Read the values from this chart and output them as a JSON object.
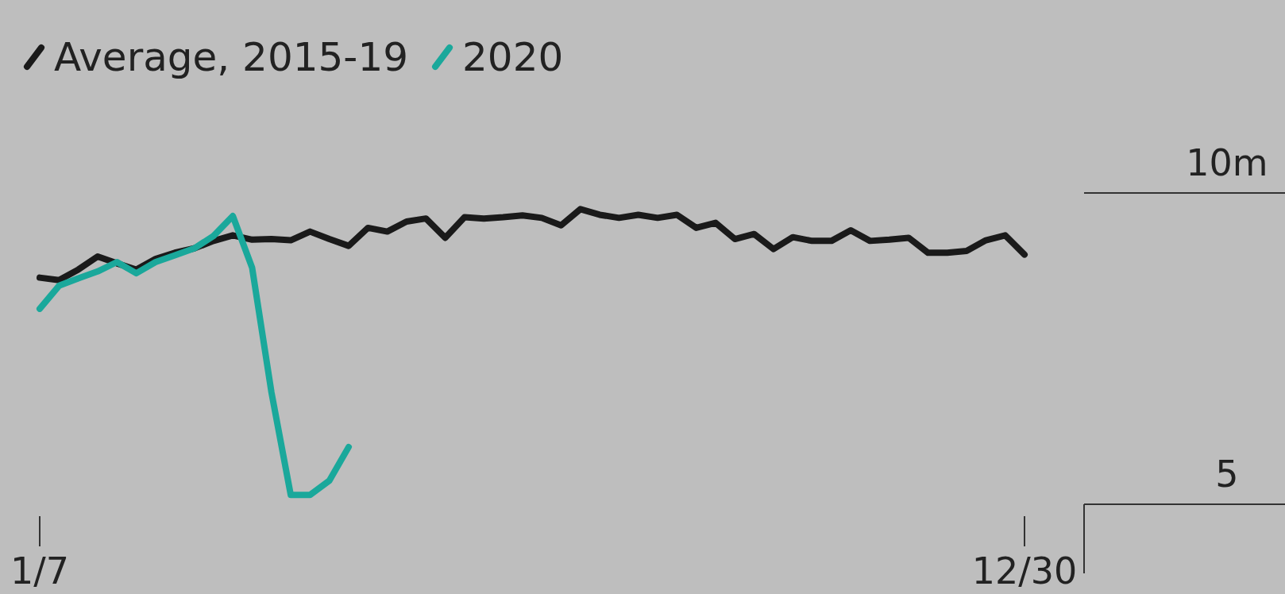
{
  "chart_data": {
    "type": "line",
    "categories": [
      "1/7",
      null,
      null,
      null,
      null,
      null,
      null,
      null,
      null,
      null,
      null,
      null,
      null,
      null,
      null,
      null,
      null,
      null,
      null,
      null,
      null,
      null,
      null,
      null,
      null,
      null,
      null,
      null,
      null,
      null,
      null,
      null,
      null,
      null,
      null,
      null,
      null,
      null,
      null,
      null,
      null,
      null,
      null,
      null,
      null,
      null,
      null,
      null,
      null,
      null,
      null,
      "12/30"
    ],
    "ylim": [
      5,
      10
    ],
    "yticks": [
      {
        "value": 10,
        "label": "10m"
      },
      5
    ],
    "legend": "top left",
    "series": [
      {
        "name": "Average, 2015-19",
        "color": "#1a1a1a",
        "values": [
          8.64,
          8.6,
          8.77,
          8.98,
          8.87,
          8.77,
          8.94,
          9.04,
          9.11,
          9.23,
          9.32,
          9.25,
          9.26,
          9.24,
          9.38,
          9.26,
          9.15,
          9.44,
          9.38,
          9.54,
          9.59,
          9.28,
          9.61,
          9.59,
          9.61,
          9.64,
          9.6,
          9.48,
          9.74,
          9.65,
          9.6,
          9.65,
          9.6,
          9.65,
          9.44,
          9.52,
          9.26,
          9.34,
          9.1,
          9.29,
          9.23,
          9.23,
          9.4,
          9.23,
          9.25,
          9.28,
          9.04,
          9.04,
          9.07,
          9.24,
          9.32,
          9.01
        ]
      },
      {
        "name": "2020",
        "color": "#1aa89b",
        "values": [
          8.14,
          8.51,
          8.63,
          8.74,
          8.89,
          8.71,
          8.89,
          9.0,
          9.11,
          9.31,
          9.63,
          8.8,
          6.8,
          5.15,
          5.15,
          5.38,
          5.92,
          null,
          null,
          null,
          null,
          null,
          null,
          null,
          null,
          null,
          null,
          null,
          null,
          null,
          null,
          null,
          null,
          null,
          null,
          null,
          null,
          null,
          null,
          null,
          null,
          null,
          null,
          null,
          null,
          null,
          null,
          null,
          null,
          null,
          null,
          null
        ]
      }
    ]
  }
}
